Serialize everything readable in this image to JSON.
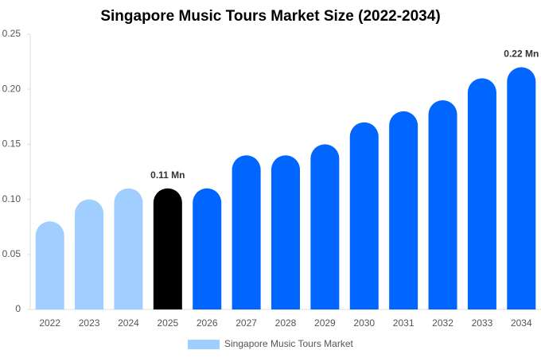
{
  "chart_data": {
    "type": "bar",
    "title": "Singapore Music Tours Market Size (2022-2034)",
    "categories": [
      "2022",
      "2023",
      "2024",
      "2025",
      "2026",
      "2027",
      "2028",
      "2029",
      "2030",
      "2031",
      "2032",
      "2033",
      "2034"
    ],
    "series": [
      {
        "name": "Singapore Music Tours Market",
        "color": "#a0cfff",
        "values": [
          0.08,
          0.1,
          0.11,
          0.11,
          0.11,
          0.14,
          0.14,
          0.15,
          0.17,
          0.18,
          0.19,
          0.21,
          0.22
        ],
        "value_labels": [
          null,
          null,
          null,
          "0.11 Mn",
          null,
          null,
          null,
          null,
          null,
          null,
          null,
          null,
          "0.22 Mn"
        ],
        "colors": [
          "#a0cfff",
          "#a0cfff",
          "#a0cfff",
          "#000000",
          "#0066ff",
          "#0066ff",
          "#0066ff",
          "#0066ff",
          "#0066ff",
          "#0066ff",
          "#0066ff",
          "#0066ff",
          "#0066ff"
        ]
      }
    ],
    "ylim": [
      0,
      0.25
    ],
    "yticks": [
      0,
      0.05,
      {
        "value": 0.1,
        "label": "0.10"
      },
      0.15,
      {
        "value": 0.2,
        "label": "0.20"
      },
      0.25
    ],
    "grid": false,
    "legend": "bottom"
  }
}
